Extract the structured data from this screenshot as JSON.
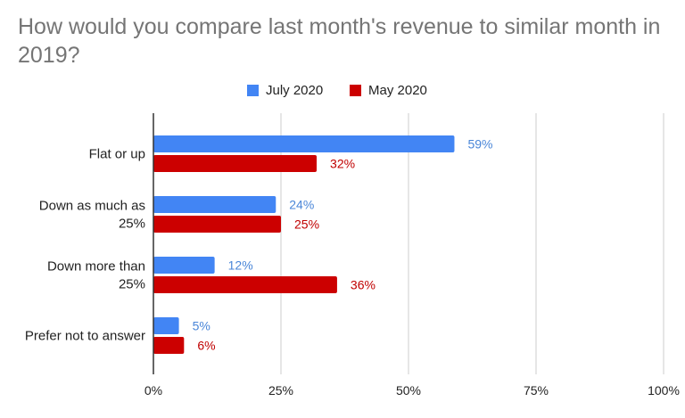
{
  "chart_data": {
    "type": "bar",
    "orientation": "horizontal",
    "title": "How would you compare last month's revenue to similar month in 2019?",
    "categories": [
      [
        "Flat or up"
      ],
      [
        "Down as much as",
        "25%"
      ],
      [
        "Down more than",
        "25%"
      ],
      [
        "Prefer not to answer"
      ]
    ],
    "series": [
      {
        "name": "July 2020",
        "color": "#4285f4",
        "label_color": "#4a86d8",
        "values": [
          59,
          24,
          12,
          5
        ],
        "labels": [
          "59%",
          "24%",
          "12%",
          "5%"
        ]
      },
      {
        "name": "May 2020",
        "color": "#cc0000",
        "label_color": "#c00000",
        "values": [
          32,
          25,
          36,
          6
        ],
        "labels": [
          "32%",
          "25%",
          "36%",
          "6%"
        ]
      }
    ],
    "xlim": [
      0,
      100
    ],
    "x_ticks": [
      0,
      25,
      50,
      75,
      100
    ],
    "x_tick_labels": [
      "0%",
      "25%",
      "50%",
      "75%",
      "100%"
    ],
    "grid": true,
    "legend_position": "top-center"
  }
}
